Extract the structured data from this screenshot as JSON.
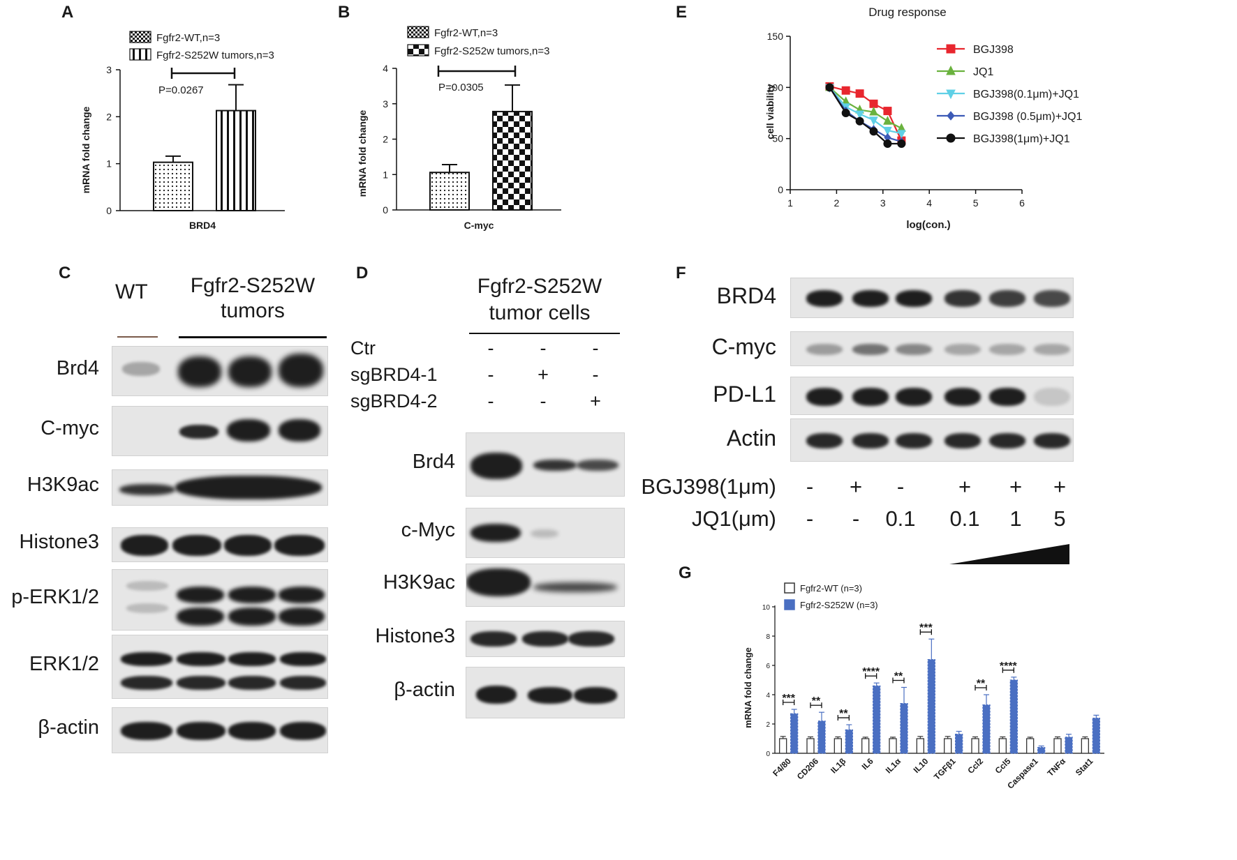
{
  "panels": {
    "A": "A",
    "B": "B",
    "C": "C",
    "D": "D",
    "E": "E",
    "F": "F",
    "G": "G"
  },
  "palette": {
    "red": "#e8262e",
    "green": "#6ab23e",
    "cyan": "#5fd0e6",
    "blue": "#3c5ab6",
    "black": "#111111",
    "g_blue": "#4a6fc2"
  },
  "panel_a": {
    "legend": [
      "Fgfr2-WT,n=3",
      "Fgfr2-S252W tumors,n=3"
    ],
    "pvalue": "P=0.0267",
    "ylabel": "mRNA fold change",
    "xlabel": "BRD4"
  },
  "panel_b": {
    "legend": [
      "Fgfr2-WT,n=3",
      "Fgfr2-S252w tumors,n=3"
    ],
    "pvalue": "P=0.0305",
    "ylabel": "mRNA fold change",
    "xlabel": "C-myc"
  },
  "panel_c": {
    "col_wt": "WT",
    "col_tumor": "Fgfr2-S252W tumors",
    "rows": [
      "Brd4",
      "C-myc",
      "H3K9ac",
      "Histone3",
      "p-ERK1/2",
      "ERK1/2",
      "β-actin"
    ]
  },
  "panel_d": {
    "header": "Fgfr2-S252W tumor cells",
    "conditions": [
      {
        "name": "Ctr",
        "marks": [
          "-",
          "-",
          "-"
        ]
      },
      {
        "name": "sgBRD4-1",
        "marks": [
          "-",
          "+",
          "-"
        ]
      },
      {
        "name": "sgBRD4-2",
        "marks": [
          "-",
          "-",
          "+"
        ]
      }
    ],
    "rows": [
      "Brd4",
      "c-Myc",
      "H3K9ac",
      "Histone3",
      "β-actin"
    ]
  },
  "panel_f": {
    "rows": [
      "BRD4",
      "C-myc",
      "PD-L1",
      "Actin"
    ],
    "treat1_label": "BGJ398(1μm)",
    "treat1_marks": [
      "-",
      "+",
      "-",
      "+",
      "+",
      "+"
    ],
    "treat2_label": "JQ1(μm)",
    "treat2_marks": [
      "-",
      "-",
      "0.1",
      "0.1",
      "1",
      "5"
    ]
  },
  "chart_data": [
    {
      "panel": "A",
      "type": "bar",
      "categories": [
        "BRD4"
      ],
      "series": [
        {
          "name": "Fgfr2-WT,n=3",
          "values": [
            1.03
          ],
          "error": [
            0.13
          ]
        },
        {
          "name": "Fgfr2-S252W tumors,n=3",
          "values": [
            2.13
          ],
          "error": [
            0.55
          ]
        }
      ],
      "xlabel": "BRD4",
      "ylabel": "mRNA fold change",
      "ylim": [
        0,
        3
      ],
      "yticks": [
        0,
        1,
        2,
        3
      ],
      "annotation": "P=0.0267",
      "legend": "top-left"
    },
    {
      "panel": "B",
      "type": "bar",
      "categories": [
        "C-myc"
      ],
      "series": [
        {
          "name": "Fgfr2-WT,n=3",
          "values": [
            1.06
          ],
          "error": [
            0.22
          ]
        },
        {
          "name": "Fgfr2-S252w tumors,n=3",
          "values": [
            2.78
          ],
          "error": [
            0.75
          ]
        }
      ],
      "xlabel": "C-myc",
      "ylabel": "mRNA fold change",
      "ylim": [
        0,
        4
      ],
      "yticks": [
        0,
        1,
        2,
        3,
        4
      ],
      "annotation": "P=0.0305",
      "legend": "top-left"
    },
    {
      "panel": "E",
      "type": "line",
      "title": "Drug response",
      "xlabel": "log(con.)",
      "ylabel": "cell viability",
      "xlim": [
        1,
        6
      ],
      "ylim": [
        0,
        150
      ],
      "xticks": [
        1,
        2,
        3,
        4,
        5,
        6
      ],
      "yticks": [
        0,
        50,
        100,
        150
      ],
      "legend": "right",
      "series": [
        {
          "name": "BGJ398",
          "marker": "square",
          "x": [
            1.85,
            2.2,
            2.5,
            2.8,
            3.1,
            3.4
          ],
          "y": [
            101,
            97,
            94,
            84,
            77,
            48
          ]
        },
        {
          "name": "JQ1",
          "marker": "triangle-up",
          "x": [
            1.85,
            2.2,
            2.5,
            2.8,
            3.1,
            3.4
          ],
          "y": [
            100,
            86,
            78,
            76,
            67,
            60
          ]
        },
        {
          "name": "BGJ398(0.1μm)+JQ1",
          "marker": "triangle-down",
          "x": [
            1.85,
            2.2,
            2.5,
            2.8,
            3.1,
            3.4
          ],
          "y": [
            100,
            81,
            74,
            68,
            58,
            55
          ]
        },
        {
          "name": "BGJ398 (0.5μm)+JQ1",
          "marker": "diamond",
          "x": [
            1.85,
            2.2,
            2.5,
            2.8,
            3.1,
            3.4
          ],
          "y": [
            100,
            77,
            67,
            59,
            51,
            47
          ]
        },
        {
          "name": "BGJ398(1μm)+JQ1",
          "marker": "circle",
          "x": [
            1.85,
            2.2,
            2.5,
            2.8,
            3.1,
            3.4
          ],
          "y": [
            100,
            75,
            67,
            57,
            45,
            45
          ]
        }
      ]
    },
    {
      "panel": "G",
      "type": "bar",
      "ylabel": "mRNA fold change",
      "ylim": [
        0,
        10
      ],
      "yticks": [
        0,
        2,
        4,
        6,
        8,
        10
      ],
      "legend": "top-left",
      "categories": [
        "F4/80",
        "CD206",
        "IL1β",
        "IL6",
        "IL1α",
        "IL10",
        "TGFβ1",
        "Ccl2",
        "Ccl5",
        "Caspase1",
        "TNFα",
        "Stat1"
      ],
      "series": [
        {
          "name": "Fgfr2-WT (n=3)",
          "values": [
            1,
            1,
            1,
            1,
            1,
            1,
            1,
            1,
            1,
            1,
            1,
            1
          ],
          "error": [
            0.15,
            0.12,
            0.12,
            0.1,
            0.1,
            0.15,
            0.15,
            0.12,
            0.12,
            0.1,
            0.12,
            0.12
          ]
        },
        {
          "name": "Fgfr2-S252W (n=3)",
          "values": [
            2.7,
            2.2,
            1.6,
            4.6,
            3.4,
            6.4,
            1.3,
            3.3,
            5.0,
            0.4,
            1.1,
            2.4
          ],
          "error": [
            0.3,
            0.6,
            0.35,
            0.2,
            1.1,
            1.4,
            0.2,
            0.7,
            0.2,
            0.1,
            0.2,
            0.2
          ]
        }
      ],
      "significance": [
        "***",
        "**",
        "**",
        "****",
        "**",
        "***",
        "",
        "**",
        "****",
        "",
        "",
        ""
      ]
    }
  ]
}
